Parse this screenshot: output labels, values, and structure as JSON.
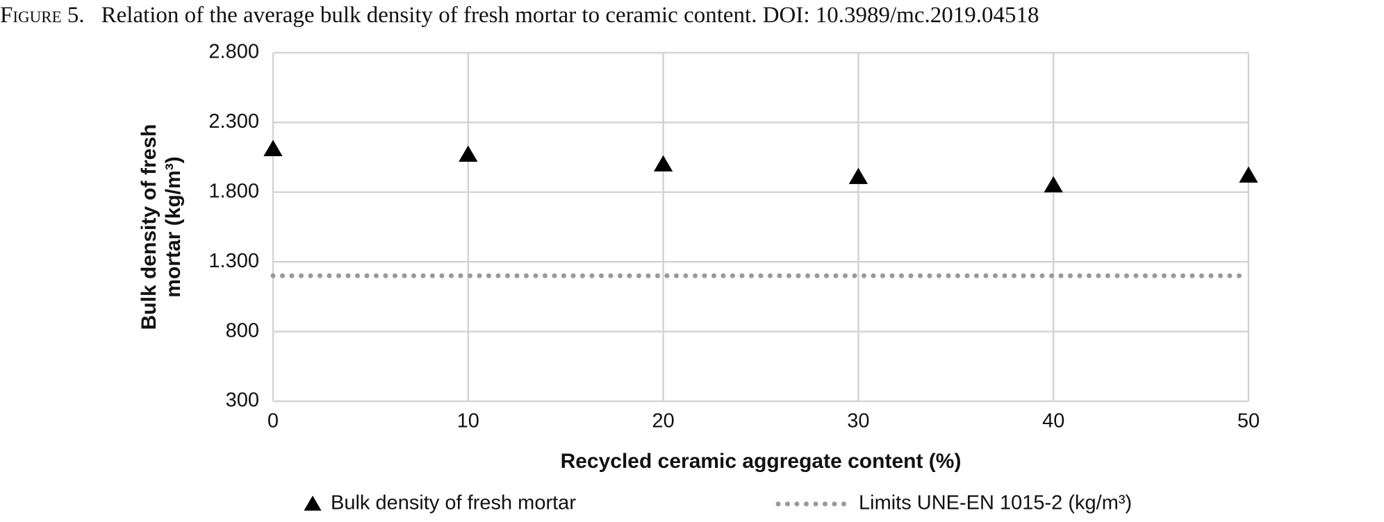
{
  "caption_label": "Figure 5.",
  "caption": "Relation of the average bulk density of fresh mortar to ceramic content. DOI: 10.3989/mc.2019.04518",
  "chart_data": {
    "type": "scatter",
    "x_label": "Recycled ceramic aggregate content (%)",
    "y_label": "Bulk density of fresh mortar (kg/m³)",
    "x": [
      0,
      10,
      20,
      30,
      40,
      50
    ],
    "series": [
      {
        "name": "Bulk density of fresh mortar",
        "color": "#000000",
        "marker": "triangle",
        "values": [
          2110,
          2070,
          2000,
          1910,
          1850,
          1920
        ]
      },
      {
        "name": "Limits UNE-EN 1015-2 (kg/m³)",
        "color": "#999999",
        "line": "dotted",
        "values": [
          1200,
          1200,
          1200,
          1200,
          1200,
          1200
        ]
      }
    ],
    "xlim": [
      0,
      50
    ],
    "xticks": [
      0,
      10,
      20,
      30,
      40,
      50
    ],
    "ylim": [
      300,
      2800
    ],
    "yticks": [
      300,
      800,
      {
        "value": 1300,
        "label": "1.300"
      },
      {
        "value": 1800,
        "label": "1.800"
      },
      {
        "value": 2300,
        "label": "2.300"
      },
      {
        "value": 2800,
        "label": "2.800"
      }
    ],
    "grid": true,
    "legend": "bottom"
  }
}
